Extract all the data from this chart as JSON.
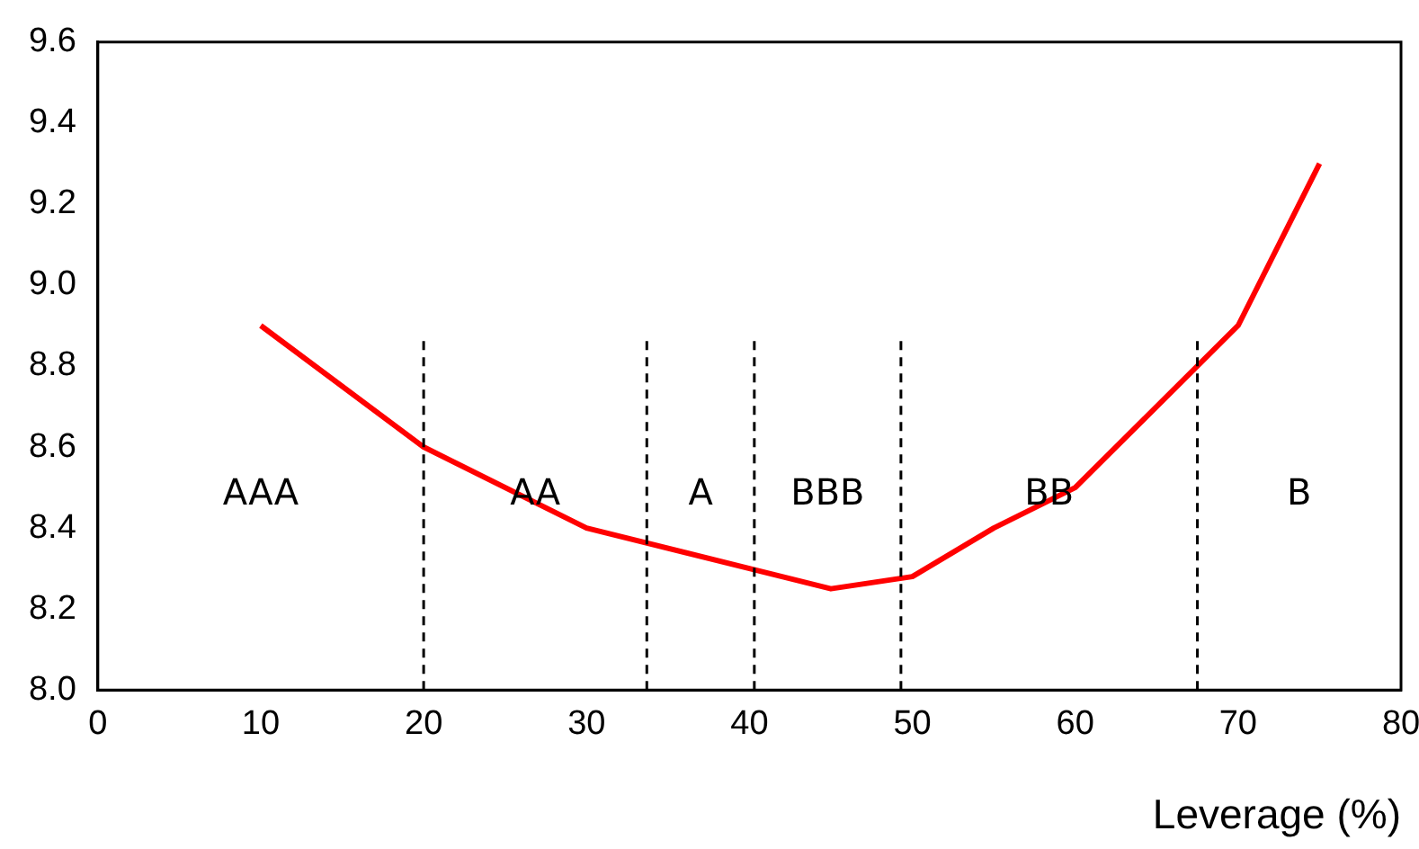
{
  "chart_data": {
    "type": "line",
    "xlabel": "Leverage (%)",
    "x": [
      10,
      20,
      30,
      40,
      45,
      50,
      55,
      60,
      70,
      75
    ],
    "series": [
      {
        "color": "#ff0000",
        "values": [
          8.9,
          8.6,
          8.4,
          8.3,
          8.25,
          8.28,
          8.4,
          8.5,
          8.9,
          9.3
        ]
      }
    ],
    "xlim": [
      0,
      80
    ],
    "xticks": [
      0,
      10,
      20,
      30,
      40,
      50,
      60,
      70,
      80
    ],
    "ylim": [
      8.0,
      9.6
    ],
    "yticks": [
      {
        "value": 8.0,
        "label": "8.0"
      },
      {
        "value": 8.2,
        "label": "8.2"
      },
      {
        "value": 8.4,
        "label": "8.4"
      },
      {
        "value": 8.6,
        "label": "8.6"
      },
      {
        "value": 8.8,
        "label": "8.8"
      },
      {
        "value": 9.0,
        "label": "9.0"
      },
      {
        "value": 9.2,
        "label": "9.2"
      },
      {
        "value": 9.4,
        "label": "9.4"
      },
      {
        "value": 9.6,
        "label": "9.6"
      }
    ],
    "ref_lines": [
      {
        "axis": "x",
        "value": 20,
        "color": "#000000",
        "line_style": "dashed"
      },
      {
        "axis": "x",
        "value": 33.7,
        "color": "#000000",
        "line_style": "dashed"
      },
      {
        "axis": "x",
        "value": 40.3,
        "color": "#000000",
        "line_style": "dashed"
      },
      {
        "axis": "x",
        "value": 49.3,
        "color": "#000000",
        "line_style": "dashed"
      },
      {
        "axis": "x",
        "value": 67.5,
        "color": "#000000",
        "line_style": "dashed"
      }
    ],
    "annotations": [
      "AAA",
      "AA",
      "A",
      "BBB",
      "BB",
      "B"
    ],
    "grid": false,
    "legend": false,
    "marker": "none",
    "line_style": "solid"
  }
}
